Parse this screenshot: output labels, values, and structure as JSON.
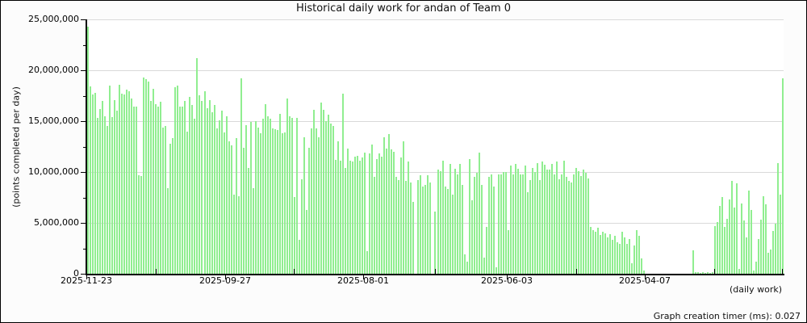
{
  "title": "Historical daily work for andan of Team 0",
  "y_axis_title": "(points completed per day)",
  "x_axis_unit_label": "(daily work)",
  "footer": {
    "graph_timer_text": "Graph creation timer (ms): 0.027"
  },
  "chart_data": {
    "type": "bar",
    "title": "Historical daily work for andan of Team 0",
    "xlabel": "(daily work)",
    "ylabel": "(points completed per day)",
    "legend": "none",
    "grid": "horizontal gridlines every 5,000,000",
    "bar_color": "#90ee90",
    "grid_color": "#d9d9d9",
    "axis_color": "#000000",
    "ylim": [
      0,
      25000000
    ],
    "y_tick_labels": [
      "25,000,000",
      "20,000,000",
      "15,000,000",
      "10,000,000",
      "5,000,000",
      "0"
    ],
    "y_tick_values_millions": [
      25,
      20,
      15,
      10,
      5,
      0
    ],
    "y_minor_tick_values_millions": [
      22.5,
      17.5,
      12.5,
      7.5,
      2.5
    ],
    "x_tick_labels": [
      "2025-11-23",
      "2025-09-27",
      "2025-08-01",
      "2025-06-03",
      "2025-04-07"
    ],
    "x_tick_day_indices": [
      0,
      57,
      114,
      173,
      230
    ],
    "x_minor_tick_day_indices": [
      28.5,
      85.5,
      143.5,
      201.5,
      258.5,
      286.5
    ],
    "x_axis_note": "one bar per day; dates run newest (left) to oldest (right)",
    "unit": "points completed per day, values in millions",
    "values_millions": [
      24.3,
      18.4,
      17.6,
      17.8,
      15.3,
      16.2,
      17.0,
      15.5,
      14.5,
      18.5,
      15.4,
      17.1,
      16.0,
      18.6,
      17.7,
      17.6,
      18.1,
      17.9,
      17.2,
      16.4,
      16.4,
      9.7,
      9.6,
      19.3,
      19.1,
      18.9,
      17.0,
      18.2,
      16.7,
      16.4,
      16.9,
      14.4,
      14.5,
      8.4,
      12.8,
      13.3,
      18.3,
      18.5,
      16.4,
      16.4,
      17.0,
      14.0,
      17.4,
      16.6,
      15.2,
      21.2,
      17.5,
      17.0,
      17.9,
      16.3,
      17.1,
      15.9,
      16.6,
      14.3,
      15.1,
      16.0,
      13.9,
      15.5,
      13.0,
      12.6,
      7.8,
      13.3,
      7.6,
      19.2,
      12.4,
      14.6,
      10.4,
      14.9,
      8.4,
      15.0,
      14.4,
      13.8,
      15.2,
      16.7,
      15.5,
      15.2,
      14.3,
      14.2,
      14.1,
      15.7,
      13.8,
      13.9,
      17.2,
      15.5,
      15.3,
      7.5,
      15.3,
      3.3,
      9.3,
      13.4,
      6.3,
      12.4,
      14.3,
      16.1,
      14.3,
      13.4,
      16.8,
      16.1,
      15.0,
      15.6,
      14.8,
      14.5,
      11.2,
      13.0,
      11.1,
      17.7,
      10.4,
      12.3,
      11.1,
      11.0,
      11.5,
      11.6,
      11.1,
      11.4,
      11.9,
      2.2,
      11.8,
      12.7,
      9.5,
      11.3,
      11.8,
      11.5,
      13.4,
      12.3,
      13.7,
      12.2,
      12.0,
      9.5,
      9.2,
      11.4,
      13.0,
      9.1,
      11.0,
      9.0,
      7.1,
      0,
      9.2,
      9.7,
      8.6,
      8.7,
      9.7,
      9.0,
      0,
      6.1,
      10.2,
      10.1,
      11.1,
      8.6,
      8.3,
      10.8,
      7.8,
      10.3,
      9.8,
      10.8,
      8.7,
      1.9,
      1.2,
      11.3,
      7.2,
      9.5,
      9.9,
      11.9,
      8.7,
      1.6,
      4.6,
      9.5,
      9.8,
      8.6,
      0.6,
      9.8,
      9.8,
      10.0,
      10.0,
      4.3,
      10.6,
      9.8,
      10.8,
      10.3,
      9.8,
      9.8,
      10.6,
      8.0,
      9.2,
      10.4,
      10.0,
      10.9,
      9.2,
      11.0,
      10.7,
      10.2,
      10.2,
      10.8,
      9.8,
      11.0,
      9.3,
      9.8,
      11.1,
      9.5,
      9.1,
      9.0,
      9.8,
      10.4,
      10.1,
      9.6,
      10.2,
      9.9,
      9.4,
      4.6,
      4.3,
      4.1,
      4.5,
      3.8,
      4.1,
      4.0,
      3.6,
      3.9,
      3.3,
      3.7,
      3.1,
      2.9,
      4.1,
      3.6,
      2.9,
      3.4,
      1.0,
      2.8,
      4.3,
      3.7,
      1.5,
      0.3,
      0,
      0,
      0,
      0,
      0,
      0,
      0,
      0,
      0,
      0,
      0,
      0,
      0,
      0,
      0,
      0,
      0,
      0,
      0,
      2.3,
      0.15,
      0.15,
      0.1,
      0.15,
      0.1,
      0.15,
      0.1,
      0.15,
      4.7,
      5.1,
      6.7,
      7.5,
      4.6,
      5.4,
      7.3,
      9.1,
      6.5,
      8.9,
      0.5,
      6.9,
      5.2,
      3.6,
      8.2,
      6.3,
      0.3,
      1.2,
      3.4,
      5.3,
      7.6,
      6.8,
      2.1,
      2.4,
      4.2,
      4.9,
      10.9,
      7.8,
      19.2
    ]
  }
}
